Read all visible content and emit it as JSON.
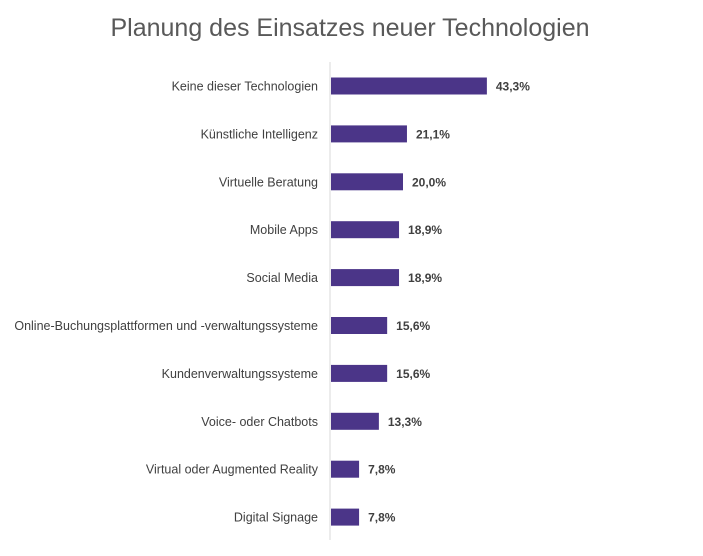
{
  "chart_data": {
    "type": "bar",
    "orientation": "horizontal",
    "title": "Planung des Einsatzes neuer Technologien",
    "categories": [
      "Keine dieser Technologien",
      "Künstliche Intelligenz",
      "Virtuelle Beratung",
      "Mobile Apps",
      "Social Media",
      "Online-Buchungsplattformen und -verwaltungssysteme",
      "Kundenverwaltungssysteme",
      "Voice- oder Chatbots",
      "Virtual oder Augmented Reality",
      "Digital Signage"
    ],
    "values": [
      43.3,
      21.1,
      20.0,
      18.9,
      18.9,
      15.6,
      15.6,
      13.3,
      7.8,
      7.8
    ],
    "value_labels": [
      "43,3%",
      "21,1%",
      "20,0%",
      "18,9%",
      "18,9%",
      "15,6%",
      "15,6%",
      "13,3%",
      "7,8%",
      "7,8%"
    ],
    "xlabel": "",
    "ylabel": "",
    "xlim": [
      0,
      100
    ],
    "grid": false,
    "legend": "none",
    "colors": {
      "bar": "#4B3588",
      "axis": "#D9D9D9",
      "title": "#595959",
      "text": "#404040"
    }
  }
}
